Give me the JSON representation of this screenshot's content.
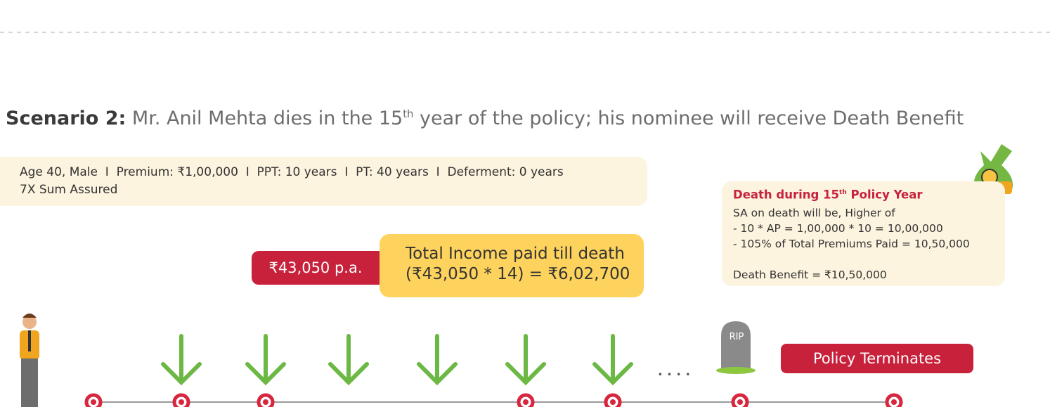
{
  "scenario": {
    "label": "Scenario 2:",
    "text_before": " Mr. Anil Mehta dies in the 15",
    "sup": "th",
    "text_after": " year of the policy; his nominee will receive Death Benefit"
  },
  "details": {
    "line1": "Age 40, Male  I  Premium: ₹1,00,000  I  PPT: 10 years  I  PT: 40 years  I  Deferment: 0 years",
    "line2": "7X Sum Assured"
  },
  "income": {
    "annual": "₹43,050 p.a.",
    "title": "Total Income paid till death",
    "formula": "(₹43,050 * 14) = ₹6,02,700"
  },
  "death_box": {
    "title_before": "Death during 15",
    "title_sup": "th",
    "title_after": " Policy Year",
    "lines": [
      "SA on death will be, Higher of",
      "- 10 * AP = 1,00,000 * 10 = 10,00,000",
      "- 105% of Total Premiums Paid = 10,50,000",
      "Death Benefit = ₹10,50,000"
    ]
  },
  "timeline": {
    "tombstone": "RIP",
    "ellipsis": ". . . .",
    "status": "Policy Terminates"
  }
}
